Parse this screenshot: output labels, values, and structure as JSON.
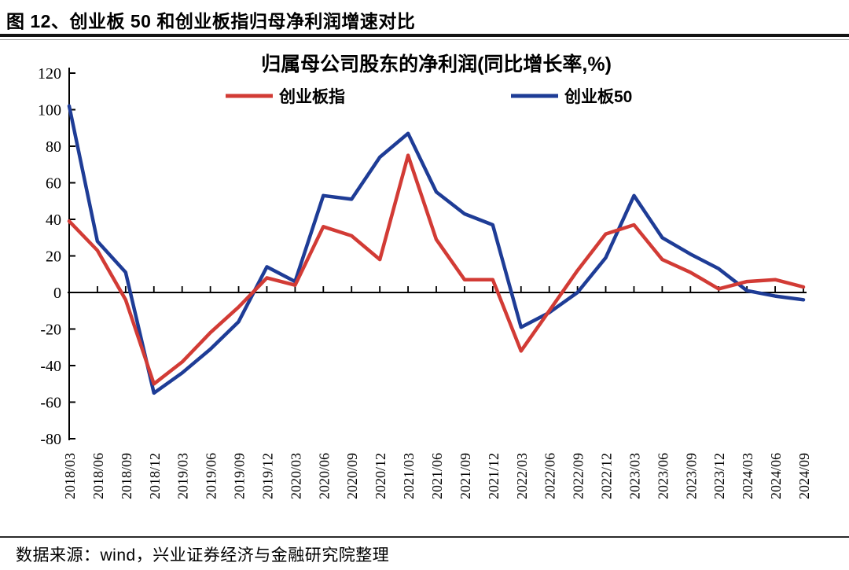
{
  "page": {
    "title": "图 12、创业板 50 和创业板指归母净利润增速对比",
    "source_note": "数据来源：wind，兴业证券经济与金融研究院整理"
  },
  "chart_data": {
    "type": "line",
    "title": "归属母公司股东的净利润(同比增长率,%)",
    "categories": [
      "2018/03",
      "2018/06",
      "2018/09",
      "2018/12",
      "2019/03",
      "2019/06",
      "2019/09",
      "2019/12",
      "2020/03",
      "2020/06",
      "2020/09",
      "2020/12",
      "2021/03",
      "2021/06",
      "2021/09",
      "2021/12",
      "2022/03",
      "2022/06",
      "2022/09",
      "2022/12",
      "2023/03",
      "2023/06",
      "2023/09",
      "2023/12",
      "2024/03",
      "2024/06",
      "2024/09"
    ],
    "series": [
      {
        "name": "创业板指",
        "color": "#d23b35",
        "values": [
          39,
          23,
          -4,
          -50,
          -38,
          -22,
          -8,
          8,
          4,
          36,
          31,
          18,
          75,
          29,
          7,
          7,
          -32,
          -10,
          12,
          32,
          37,
          18,
          11,
          2,
          6,
          7,
          3
        ]
      },
      {
        "name": "创业板50",
        "color": "#1e3c96",
        "values": [
          102,
          28,
          11,
          -55,
          -44,
          -31,
          -16,
          14,
          6,
          53,
          51,
          74,
          87,
          55,
          43,
          37,
          -19,
          -11,
          0,
          19,
          53,
          30,
          21,
          13,
          1,
          -2,
          -4
        ]
      }
    ],
    "ylim": [
      -80,
      120
    ],
    "ytick_step": 20,
    "axis_color": "#000000",
    "grid": false,
    "legend_position": "top"
  }
}
